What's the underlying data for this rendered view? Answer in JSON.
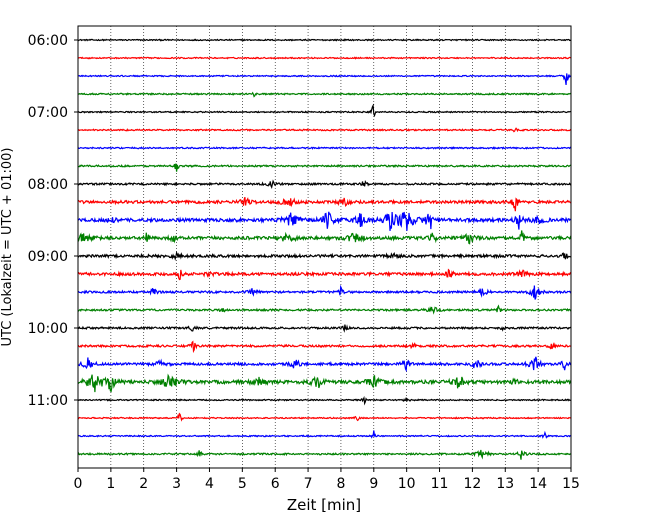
{
  "chart_data": {
    "type": "line",
    "title": "",
    "xlabel": "Zeit  [min]",
    "ylabel": "UTC (Lokalzeit = UTC + 01:00)",
    "xlim": [
      0,
      15
    ],
    "x_ticks": [
      0,
      1,
      2,
      3,
      4,
      5,
      6,
      7,
      8,
      9,
      10,
      11,
      12,
      13,
      14,
      15
    ],
    "x_tick_labels": [
      "0",
      "1",
      "2",
      "3",
      "4",
      "5",
      "6",
      "7",
      "8",
      "9",
      "10",
      "11",
      "12",
      "13",
      "14",
      "15"
    ],
    "y_tick_labels": [
      "06:00",
      "07:00",
      "08:00",
      "09:00",
      "10:00",
      "11:00"
    ],
    "y_tick_rows": [
      0,
      4,
      8,
      12,
      16,
      20
    ],
    "grid": "vertical dotted",
    "trace_interval_min": 15,
    "color_cycle": [
      "#000000",
      "#ff0000",
      "#0000ff",
      "#008000"
    ],
    "traces": [
      {
        "start": "06:00",
        "noise": 0.6,
        "events": []
      },
      {
        "start": "06:15",
        "noise": 0.6,
        "events": []
      },
      {
        "start": "06:30",
        "noise": 0.6,
        "events": [
          {
            "t": 14.85,
            "amp": 9,
            "w": 0.05
          }
        ]
      },
      {
        "start": "06:45",
        "noise": 0.7,
        "events": [
          {
            "t": 5.35,
            "amp": 5,
            "w": 0.03
          }
        ]
      },
      {
        "start": "07:00",
        "noise": 0.6,
        "events": [
          {
            "t": 8.98,
            "amp": 10,
            "w": 0.04
          }
        ]
      },
      {
        "start": "07:15",
        "noise": 0.7,
        "events": [
          {
            "t": 13.3,
            "amp": 5,
            "w": 0.03
          }
        ]
      },
      {
        "start": "07:30",
        "noise": 0.7,
        "events": []
      },
      {
        "start": "07:45",
        "noise": 0.8,
        "events": [
          {
            "t": 3.0,
            "amp": 7,
            "w": 0.04
          }
        ]
      },
      {
        "start": "08:00",
        "noise": 0.9,
        "events": [
          {
            "t": 5.9,
            "amp": 3,
            "w": 0.1
          },
          {
            "t": 8.7,
            "amp": 6,
            "w": 0.04
          }
        ]
      },
      {
        "start": "08:15",
        "noise": 1.4,
        "events": [
          {
            "t": 5.1,
            "amp": 5,
            "w": 0.1
          },
          {
            "t": 6.4,
            "amp": 4,
            "w": 0.15
          },
          {
            "t": 8.1,
            "amp": 4,
            "w": 0.1
          },
          {
            "t": 13.3,
            "amp": 10,
            "w": 0.05
          }
        ]
      },
      {
        "start": "08:30",
        "noise": 1.6,
        "events": [
          {
            "t": 1.0,
            "amp": 6,
            "w": 0.06
          },
          {
            "t": 6.5,
            "amp": 7,
            "w": 0.15
          },
          {
            "t": 7.6,
            "amp": 8,
            "w": 0.15
          },
          {
            "t": 8.6,
            "amp": 9,
            "w": 0.12
          },
          {
            "t": 9.5,
            "amp": 11,
            "w": 0.15
          },
          {
            "t": 10.0,
            "amp": 12,
            "w": 0.15
          },
          {
            "t": 10.7,
            "amp": 13,
            "w": 0.08
          },
          {
            "t": 13.4,
            "amp": 12,
            "w": 0.06
          },
          {
            "t": 14.0,
            "amp": 6,
            "w": 0.1
          }
        ]
      },
      {
        "start": "08:45",
        "noise": 1.5,
        "events": [
          {
            "t": 0.2,
            "amp": 5,
            "w": 0.15
          },
          {
            "t": 2.1,
            "amp": 8,
            "w": 0.04
          },
          {
            "t": 2.9,
            "amp": 7,
            "w": 0.04
          },
          {
            "t": 6.4,
            "amp": 7,
            "w": 0.12
          },
          {
            "t": 8.4,
            "amp": 6,
            "w": 0.15
          },
          {
            "t": 10.8,
            "amp": 6,
            "w": 0.06
          },
          {
            "t": 11.9,
            "amp": 6,
            "w": 0.12
          },
          {
            "t": 13.5,
            "amp": 7,
            "w": 0.04
          }
        ]
      },
      {
        "start": "09:00",
        "noise": 1.3,
        "events": [
          {
            "t": 3.0,
            "amp": 3,
            "w": 0.1
          },
          {
            "t": 9.6,
            "amp": 3,
            "w": 0.1
          },
          {
            "t": 14.8,
            "amp": 4,
            "w": 0.05
          }
        ]
      },
      {
        "start": "09:15",
        "noise": 1.4,
        "events": [
          {
            "t": 3.1,
            "amp": 6,
            "w": 0.04
          },
          {
            "t": 4.0,
            "amp": 3,
            "w": 0.1
          },
          {
            "t": 11.3,
            "amp": 6,
            "w": 0.06
          },
          {
            "t": 13.5,
            "amp": 4,
            "w": 0.08
          }
        ]
      },
      {
        "start": "09:30",
        "noise": 1.0,
        "events": [
          {
            "t": 2.3,
            "amp": 5,
            "w": 0.06
          },
          {
            "t": 5.3,
            "amp": 3,
            "w": 0.1
          },
          {
            "t": 8.0,
            "amp": 6,
            "w": 0.04
          },
          {
            "t": 12.3,
            "amp": 6,
            "w": 0.08
          },
          {
            "t": 13.9,
            "amp": 8,
            "w": 0.1
          }
        ]
      },
      {
        "start": "09:45",
        "noise": 0.9,
        "events": [
          {
            "t": 4.4,
            "amp": 4,
            "w": 0.04
          },
          {
            "t": 10.8,
            "amp": 5,
            "w": 0.1
          },
          {
            "t": 12.8,
            "amp": 6,
            "w": 0.04
          }
        ]
      },
      {
        "start": "10:00",
        "noise": 0.9,
        "events": [
          {
            "t": 3.5,
            "amp": 3,
            "w": 0.08
          },
          {
            "t": 8.1,
            "amp": 4,
            "w": 0.05
          },
          {
            "t": 12.9,
            "amp": 3,
            "w": 0.05
          }
        ]
      },
      {
        "start": "10:15",
        "noise": 1.0,
        "events": [
          {
            "t": 3.5,
            "amp": 9,
            "w": 0.04
          },
          {
            "t": 10.2,
            "amp": 4,
            "w": 0.06
          },
          {
            "t": 14.4,
            "amp": 4,
            "w": 0.06
          }
        ]
      },
      {
        "start": "10:30",
        "noise": 1.2,
        "events": [
          {
            "t": 0.3,
            "amp": 6,
            "w": 0.1
          },
          {
            "t": 2.5,
            "amp": 4,
            "w": 0.1
          },
          {
            "t": 6.6,
            "amp": 5,
            "w": 0.1
          },
          {
            "t": 10.0,
            "amp": 6,
            "w": 0.08
          },
          {
            "t": 12.1,
            "amp": 6,
            "w": 0.08
          },
          {
            "t": 13.9,
            "amp": 9,
            "w": 0.1
          },
          {
            "t": 14.8,
            "amp": 6,
            "w": 0.06
          }
        ]
      },
      {
        "start": "10:45",
        "noise": 1.7,
        "events": [
          {
            "t": 0.5,
            "amp": 10,
            "w": 0.15
          },
          {
            "t": 1.0,
            "amp": 9,
            "w": 0.1
          },
          {
            "t": 2.8,
            "amp": 8,
            "w": 0.15
          },
          {
            "t": 5.5,
            "amp": 5,
            "w": 0.1
          },
          {
            "t": 7.3,
            "amp": 6,
            "w": 0.12
          },
          {
            "t": 9.0,
            "amp": 6,
            "w": 0.12
          },
          {
            "t": 11.6,
            "amp": 7,
            "w": 0.12
          },
          {
            "t": 13.3,
            "amp": 6,
            "w": 0.05
          }
        ]
      },
      {
        "start": "11:00",
        "noise": 0.6,
        "events": [
          {
            "t": 8.7,
            "amp": 5,
            "w": 0.04
          },
          {
            "t": 10.0,
            "amp": 3,
            "w": 0.05
          }
        ]
      },
      {
        "start": "11:15",
        "noise": 0.6,
        "events": [
          {
            "t": 3.1,
            "amp": 7,
            "w": 0.04
          },
          {
            "t": 8.5,
            "amp": 3,
            "w": 0.05
          }
        ]
      },
      {
        "start": "11:30",
        "noise": 0.6,
        "events": [
          {
            "t": 9.0,
            "amp": 6,
            "w": 0.04
          },
          {
            "t": 14.2,
            "amp": 4,
            "w": 0.04
          }
        ]
      },
      {
        "start": "11:45",
        "noise": 0.8,
        "events": [
          {
            "t": 3.7,
            "amp": 5,
            "w": 0.04
          },
          {
            "t": 12.3,
            "amp": 5,
            "w": 0.12
          },
          {
            "t": 13.5,
            "amp": 7,
            "w": 0.06
          }
        ]
      }
    ]
  }
}
